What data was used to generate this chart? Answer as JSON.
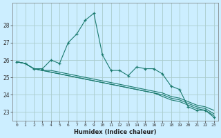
{
  "xlabel": "Humidex (Indice chaleur)",
  "background_color": "#cceeff",
  "grid_color": "#aacccc",
  "line_color": "#1a7a6e",
  "x_values": [
    0,
    1,
    2,
    3,
    4,
    5,
    6,
    7,
    8,
    9,
    10,
    11,
    12,
    13,
    14,
    15,
    16,
    17,
    18,
    19,
    20,
    21,
    22,
    23
  ],
  "line1": [
    25.9,
    25.8,
    25.5,
    25.5,
    26.0,
    25.8,
    27.0,
    27.5,
    28.3,
    28.7,
    26.3,
    25.4,
    25.4,
    25.1,
    25.6,
    25.5,
    25.5,
    25.2,
    24.5,
    24.3,
    23.3,
    23.1,
    23.1,
    22.7
  ],
  "line2": [
    25.9,
    25.8,
    25.5,
    25.4,
    25.4,
    25.3,
    25.2,
    25.1,
    25.0,
    24.9,
    24.8,
    24.7,
    24.6,
    24.5,
    24.4,
    24.3,
    24.2,
    24.1,
    23.9,
    23.8,
    23.6,
    23.4,
    23.3,
    23.1
  ],
  "line3": [
    25.9,
    25.8,
    25.5,
    25.4,
    25.3,
    25.2,
    25.1,
    25.0,
    24.9,
    24.8,
    24.7,
    24.6,
    24.5,
    24.4,
    24.3,
    24.2,
    24.1,
    24.0,
    23.8,
    23.7,
    23.5,
    23.3,
    23.2,
    22.9
  ],
  "line4": [
    25.9,
    25.8,
    25.5,
    25.4,
    25.3,
    25.2,
    25.1,
    25.0,
    24.9,
    24.8,
    24.7,
    24.6,
    24.5,
    24.4,
    24.3,
    24.2,
    24.1,
    23.9,
    23.7,
    23.6,
    23.4,
    23.2,
    23.1,
    22.8
  ],
  "ylim": [
    22.5,
    29.3
  ],
  "yticks": [
    23,
    24,
    25,
    26,
    27,
    28
  ],
  "xticks": [
    0,
    1,
    2,
    3,
    4,
    5,
    6,
    7,
    8,
    9,
    10,
    11,
    12,
    13,
    14,
    15,
    16,
    17,
    18,
    19,
    20,
    21,
    22,
    23
  ]
}
